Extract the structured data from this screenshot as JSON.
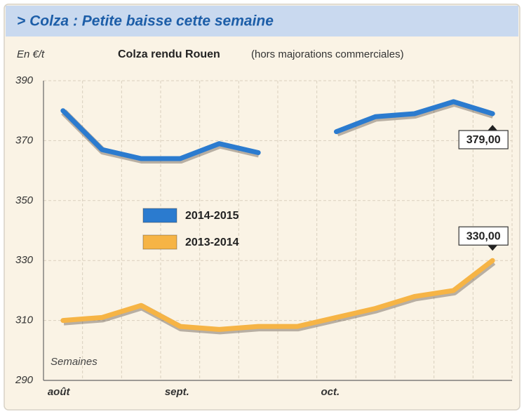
{
  "chart_data": {
    "type": "line",
    "header": "> Colza : Petite baisse cette semaine",
    "title": "Colza rendu Rouen",
    "subtitle": "(hors majorations commerciales)",
    "y_label": "En €/t",
    "annotation": "Semaines",
    "categories": [
      "août",
      null,
      null,
      "sept.",
      null,
      null,
      null,
      "oct.",
      null,
      null,
      null,
      null
    ],
    "series": [
      {
        "name": "2014-2015",
        "color": "#2b7bcf",
        "values": [
          380,
          367,
          364,
          364,
          369,
          366,
          null,
          373,
          378,
          379,
          383,
          379
        ],
        "value_labels": [
          null,
          null,
          null,
          null,
          null,
          null,
          null,
          null,
          null,
          null,
          null,
          "379,00"
        ]
      },
      {
        "name": "2013-2014",
        "color": "#f6b445",
        "values": [
          310,
          311,
          315,
          308,
          307,
          308,
          308,
          311,
          314,
          318,
          320,
          330
        ],
        "value_labels": [
          null,
          null,
          null,
          null,
          null,
          null,
          null,
          null,
          null,
          null,
          null,
          "330,00"
        ]
      }
    ],
    "ylim": [
      290,
      390
    ],
    "yticks": [
      290,
      310,
      330,
      350,
      370,
      390
    ],
    "grid": true
  }
}
